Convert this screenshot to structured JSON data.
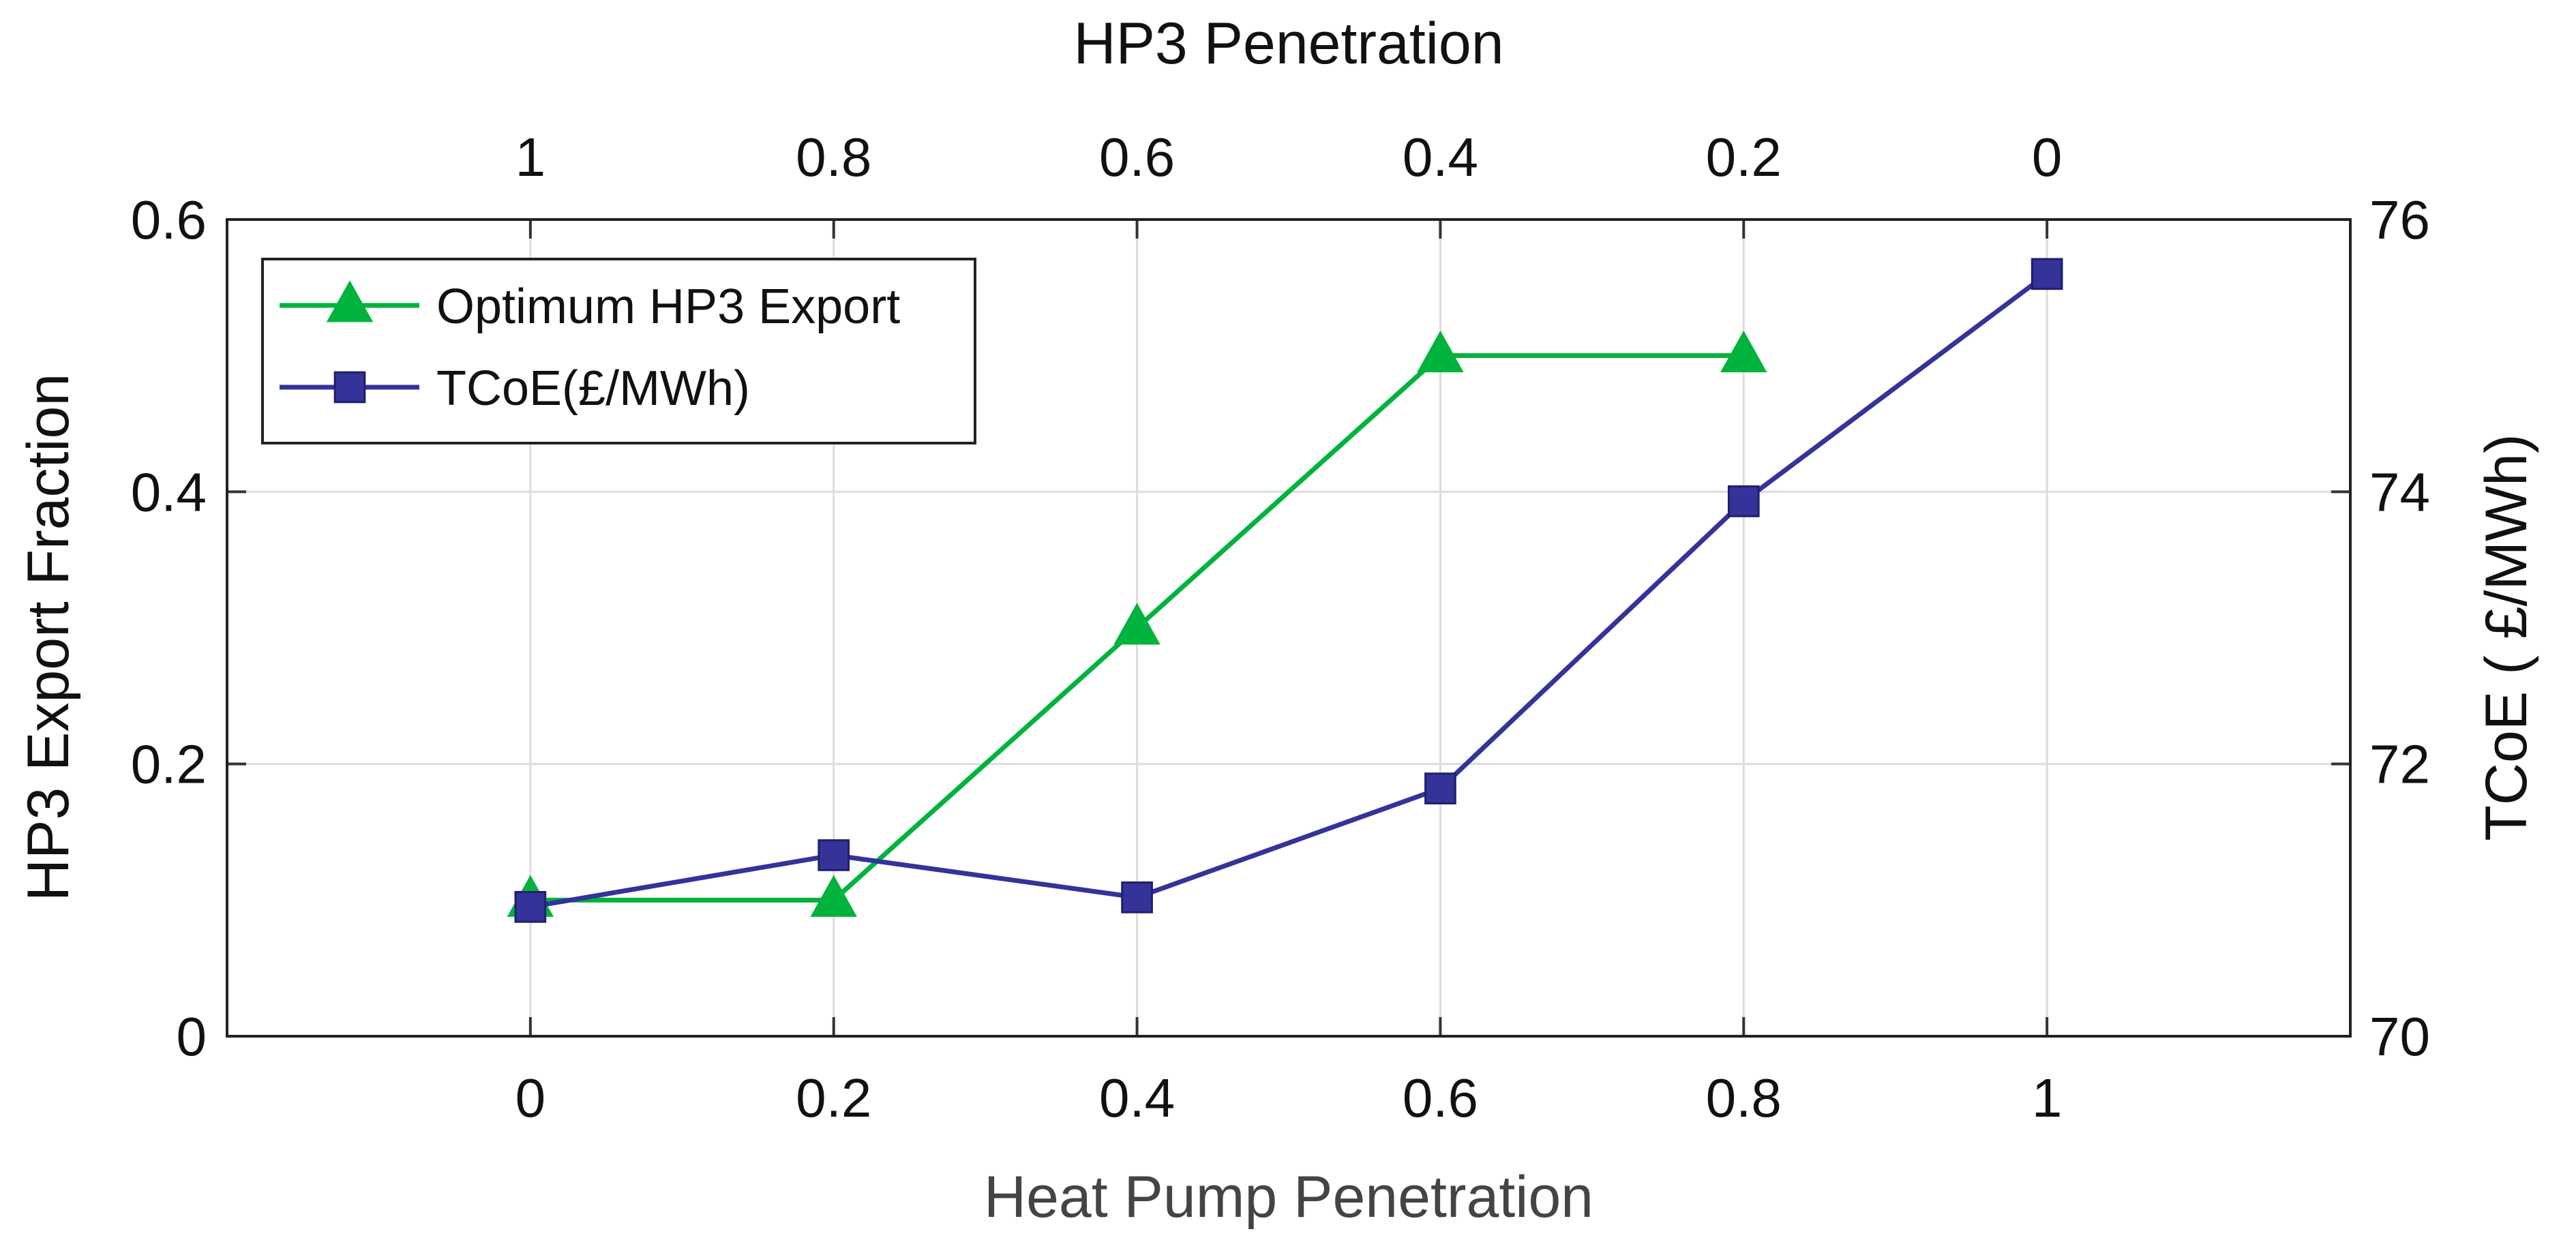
{
  "chart_data": {
    "type": "line",
    "title": "",
    "xlabel": "Heat Pump Penetration",
    "x_top_label": "HP3 Penetration",
    "ylabel_left": "HP3 Export Fraction",
    "ylabel_right": "TCoE ( £/MWh)",
    "xlim": [
      -0.2,
      1.2
    ],
    "ylim_left": [
      0,
      0.6
    ],
    "ylim_right": [
      70,
      76
    ],
    "x_ticks": [
      0,
      0.2,
      0.4,
      0.6,
      0.8,
      1
    ],
    "x_tick_labels": [
      "0",
      "0.2",
      "0.4",
      "0.6",
      "0.8",
      "1"
    ],
    "x_top_tick_labels": [
      "1",
      "0.8",
      "0.6",
      "0.4",
      "0.2",
      "0"
    ],
    "y_left_ticks": [
      0,
      0.2,
      0.4,
      0.6
    ],
    "y_left_tick_labels": [
      "0",
      "0.2",
      "0.4",
      "0.6"
    ],
    "y_right_ticks": [
      70,
      72,
      74,
      76
    ],
    "y_right_tick_labels": [
      "70",
      "72",
      "74",
      "76"
    ],
    "grid": true,
    "legend_position": "top-left",
    "series": [
      {
        "name": "Optimum HP3 Export",
        "axis": "left",
        "color": "#00b33c",
        "marker": "triangle",
        "x": [
          0,
          0.2,
          0.4,
          0.6,
          0.8
        ],
        "values": [
          0.1,
          0.1,
          0.3,
          0.5,
          0.5
        ]
      },
      {
        "name": "TCoE(£/MWh)",
        "axis": "right",
        "color": "#33339a",
        "marker": "square",
        "x": [
          0,
          0.2,
          0.4,
          0.6,
          0.8,
          1
        ],
        "values": [
          70.95,
          71.33,
          71.02,
          71.82,
          73.93,
          75.6
        ]
      }
    ]
  }
}
